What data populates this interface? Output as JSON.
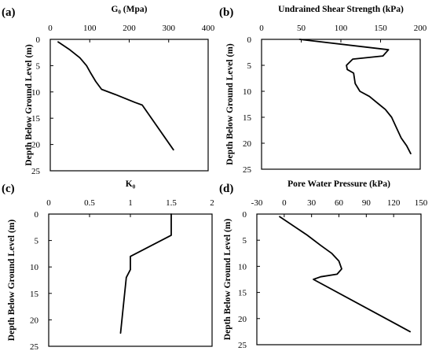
{
  "chart_data": [
    {
      "panel_label": "(a)",
      "type": "line",
      "title": "G₀ (Mpa)",
      "xlabel": "G₀ (Mpa)",
      "ylabel": "Depth Below Ground Level (m)",
      "xlim": [
        0,
        400
      ],
      "ylim": [
        0,
        25
      ],
      "x_ticks": [
        "0",
        "100",
        "200",
        "300",
        "400"
      ],
      "y_ticks": [
        "0",
        "5",
        "10",
        "15",
        "20",
        "25"
      ],
      "y_inverted": true,
      "series": [
        {
          "x": [
            20,
            50,
            75,
            92,
            103,
            115,
            130,
            165,
            215,
            233,
            312
          ],
          "y": [
            0.5,
            2.0,
            3.5,
            5.0,
            6.5,
            8.0,
            9.5,
            10.5,
            12.0,
            12.5,
            21.0
          ]
        }
      ]
    },
    {
      "panel_label": "(b)",
      "type": "line",
      "title": "Undrained Shear Strength (kPa)",
      "xlabel": "Undrained Shear Strength (kPa)",
      "ylabel": "Depth Below Ground Level (m)",
      "xlim": [
        0,
        200
      ],
      "ylim": [
        0,
        25
      ],
      "x_ticks": [
        "0",
        "50",
        "100",
        "150",
        "200"
      ],
      "y_ticks": [
        "0",
        "5",
        "10",
        "15",
        "20",
        "25"
      ],
      "y_inverted": true,
      "series": [
        {
          "x": [
            48,
            160,
            153,
            115,
            107,
            108,
            116,
            118,
            124,
            136,
            148,
            156,
            164,
            170,
            176,
            183,
            188
          ],
          "y": [
            0,
            2.0,
            3.2,
            3.8,
            5.0,
            5.8,
            6.5,
            8.5,
            10.0,
            11.0,
            12.5,
            13.5,
            15.0,
            17.0,
            19.0,
            20.5,
            22.0
          ]
        }
      ]
    },
    {
      "panel_label": "(c)",
      "type": "line",
      "title": "K₀",
      "xlabel": "K₀",
      "ylabel": "Depth Below Ground Level (m)",
      "xlim": [
        0,
        2
      ],
      "ylim": [
        0,
        25
      ],
      "x_ticks": [
        "0",
        "0.5",
        "1",
        "1.5",
        "2"
      ],
      "y_ticks": [
        "0",
        "5",
        "10",
        "15",
        "20",
        "25"
      ],
      "y_inverted": true,
      "series": [
        {
          "x": [
            1.5,
            1.5,
            1.0,
            1.0,
            0.95,
            0.93,
            0.91,
            0.88
          ],
          "y": [
            0,
            4.0,
            8.0,
            10.5,
            12.0,
            15.0,
            18.0,
            22.5
          ]
        }
      ]
    },
    {
      "panel_label": "(d)",
      "type": "line",
      "title": "Pore Water Pressure (kPa)",
      "xlabel": "Pore Water Pressure (kPa)",
      "ylabel": "Depth Below Ground Level (m)",
      "xlim": [
        -30,
        150
      ],
      "ylim": [
        0,
        25
      ],
      "x_ticks": [
        "-30",
        "0",
        "30",
        "60",
        "90",
        "120",
        "150"
      ],
      "y_ticks": [
        "0",
        "5",
        "10",
        "15",
        "20",
        "25"
      ],
      "y_inverted": true,
      "series": [
        {
          "x": [
            -5,
            25,
            40,
            52,
            60,
            63,
            58,
            40,
            32,
            138
          ],
          "y": [
            0.5,
            4.0,
            6.0,
            7.5,
            9.0,
            10.5,
            11.5,
            12.0,
            12.5,
            22.5
          ]
        }
      ]
    }
  ]
}
